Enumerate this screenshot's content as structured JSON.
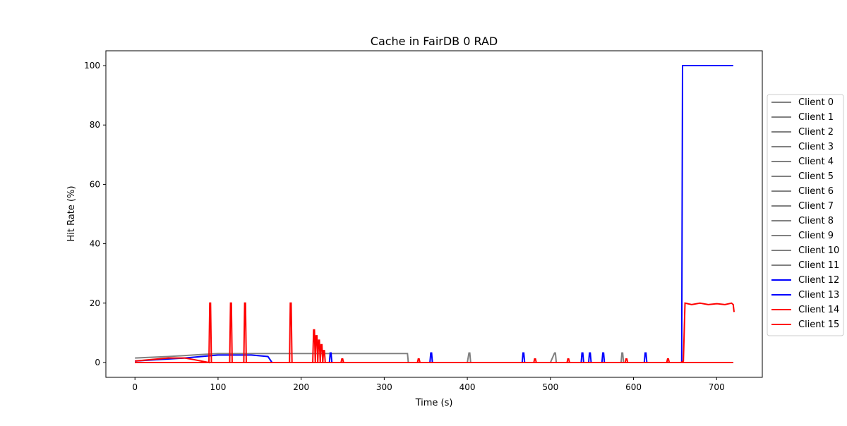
{
  "chart_data": {
    "type": "line",
    "title": "Cache in  FairDB 0 RAD",
    "xlabel": "Time (s)",
    "ylabel": "Hit Rate (%)",
    "xlim": [
      -35,
      755
    ],
    "ylim": [
      -5,
      105
    ],
    "xticks": [
      0,
      100,
      200,
      300,
      400,
      500,
      600,
      700
    ],
    "yticks": [
      0,
      20,
      40,
      60,
      80,
      100
    ],
    "grid": false,
    "legend_position": "center-right-outside",
    "series": [
      {
        "name": "Client 0",
        "color": "#808080",
        "x": [
          0,
          40,
          70,
          100,
          150,
          180,
          200,
          230,
          260,
          300,
          328,
          329,
          400,
          402,
          403,
          404,
          500,
          505,
          506,
          507,
          585,
          586,
          587,
          588,
          660
        ],
        "y": [
          1.5,
          2.0,
          2.5,
          3.0,
          3.0,
          3.0,
          3.0,
          3.0,
          3.0,
          3.0,
          3.0,
          0,
          0,
          3.2,
          3.2,
          0,
          0,
          3.2,
          3.2,
          0,
          0,
          3.2,
          3.2,
          0,
          0
        ]
      },
      {
        "name": "Client 1",
        "color": "#808080",
        "x": [
          0,
          329,
          660
        ],
        "y": [
          0,
          0,
          0
        ]
      },
      {
        "name": "Client 2",
        "color": "#808080",
        "x": [
          0,
          329,
          660
        ],
        "y": [
          0,
          0,
          0
        ]
      },
      {
        "name": "Client 3",
        "color": "#808080",
        "x": [
          0,
          329,
          660
        ],
        "y": [
          0,
          0,
          0
        ]
      },
      {
        "name": "Client 4",
        "color": "#808080",
        "x": [
          0,
          329,
          660
        ],
        "y": [
          0,
          0,
          0
        ]
      },
      {
        "name": "Client 5",
        "color": "#808080",
        "x": [
          0,
          329,
          660
        ],
        "y": [
          0,
          0,
          0
        ]
      },
      {
        "name": "Client 6",
        "color": "#808080",
        "x": [
          0,
          329,
          660
        ],
        "y": [
          0,
          0,
          0
        ]
      },
      {
        "name": "Client 7",
        "color": "#808080",
        "x": [
          0,
          329,
          660
        ],
        "y": [
          0,
          0,
          0
        ]
      },
      {
        "name": "Client 8",
        "color": "#808080",
        "x": [
          0,
          329,
          660
        ],
        "y": [
          0,
          0,
          0
        ]
      },
      {
        "name": "Client 9",
        "color": "#808080",
        "x": [
          0,
          329,
          660
        ],
        "y": [
          0,
          0,
          0
        ]
      },
      {
        "name": "Client 10",
        "color": "#808080",
        "x": [
          0,
          329,
          660
        ],
        "y": [
          0,
          0,
          0
        ]
      },
      {
        "name": "Client 11",
        "color": "#808080",
        "x": [
          0,
          329,
          660
        ],
        "y": [
          0,
          0,
          0
        ]
      },
      {
        "name": "Client 12",
        "color": "#0000ff",
        "x": [
          0,
          60,
          80,
          100,
          120,
          140,
          160,
          165,
          234,
          235,
          236,
          237,
          355,
          356,
          357,
          358,
          466,
          467,
          468,
          469,
          537,
          538,
          539,
          540,
          546,
          547,
          548,
          549,
          562,
          563,
          564,
          565,
          613,
          614,
          615,
          616,
          657,
          658,
          659,
          660,
          720
        ],
        "y": [
          0.5,
          1.5,
          2.0,
          2.5,
          2.5,
          2.5,
          2.0,
          0,
          0,
          3.2,
          3.2,
          0,
          0,
          3.2,
          3.2,
          0,
          0,
          3.2,
          3.2,
          0,
          0,
          3.2,
          3.2,
          0,
          0,
          3.2,
          3.2,
          0,
          0,
          3.2,
          3.2,
          0,
          0,
          3.2,
          3.2,
          0,
          0,
          0,
          100,
          100,
          100
        ]
      },
      {
        "name": "Client 13",
        "color": "#0000ff",
        "x": [
          0,
          720
        ],
        "y": [
          0,
          0
        ]
      },
      {
        "name": "Client 14",
        "color": "#ff0000",
        "x": [
          0,
          20,
          40,
          60,
          70,
          89,
          90,
          91,
          92,
          114,
          115,
          116,
          117,
          131,
          132,
          133,
          134,
          186,
          187,
          188,
          189,
          214,
          215,
          216,
          217,
          218,
          219,
          220,
          221,
          222,
          223,
          224,
          225,
          226,
          227,
          228,
          229,
          248,
          249,
          250,
          251,
          340,
          341,
          342,
          343,
          480,
          481,
          482,
          483,
          520,
          521,
          522,
          523,
          590,
          591,
          592,
          593,
          640,
          641,
          642,
          643,
          657,
          660,
          662,
          670,
          680,
          690,
          700,
          710,
          718,
          720,
          721
        ],
        "y": [
          0.5,
          1.0,
          1.5,
          1.5,
          1.0,
          0,
          20,
          20,
          0,
          0,
          20,
          20,
          0,
          0,
          20,
          20,
          0,
          0,
          20,
          20,
          0,
          0,
          11,
          11,
          0,
          9,
          9,
          0,
          7.5,
          7.5,
          0,
          6,
          6,
          0,
          4,
          4,
          0,
          0,
          1.2,
          1.2,
          0,
          0,
          1.2,
          1.2,
          0,
          0,
          1.2,
          1.2,
          0,
          0,
          1.2,
          1.2,
          0,
          0,
          1.2,
          1.2,
          0,
          0,
          1.2,
          1.2,
          0,
          0,
          0.5,
          20,
          19.5,
          20,
          19.5,
          19.8,
          19.5,
          20,
          19.5,
          17
        ]
      },
      {
        "name": "Client 15",
        "color": "#ff0000",
        "x": [
          0,
          720
        ],
        "y": [
          0,
          0
        ]
      }
    ]
  }
}
